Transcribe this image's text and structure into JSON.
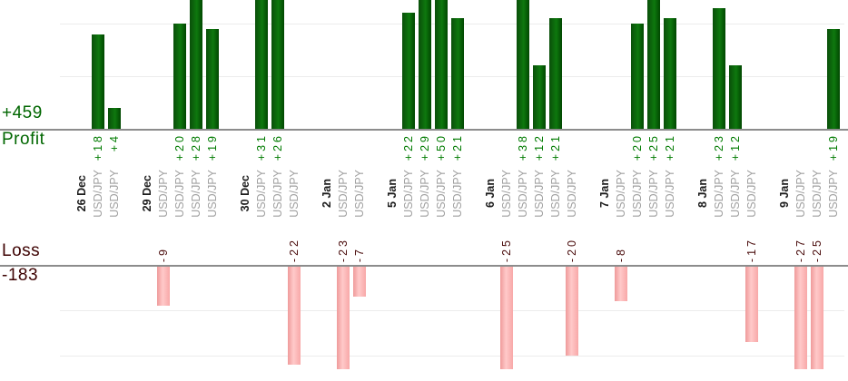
{
  "chart_data": {
    "type": "bar",
    "description": "Trade-by-trade profit and loss bar chart grouped by trading date; profits plotted upward above the upper baseline, losses plotted downward below the lower baseline",
    "instrument": "USD/JPY",
    "profit": {
      "label": "Profit",
      "total": "+459",
      "total_value": 459
    },
    "loss": {
      "label": "Loss",
      "total": "-183",
      "total_value": -183
    },
    "groups": [
      {
        "date": "26 Dec",
        "trades": [
          {
            "pair": "USD/JPY",
            "value": 18
          },
          {
            "pair": "USD/JPY",
            "value": 4
          }
        ]
      },
      {
        "date": "29 Dec",
        "trades": [
          {
            "pair": "USD/JPY",
            "value": -9
          },
          {
            "pair": "USD/JPY",
            "value": 20
          },
          {
            "pair": "USD/JPY",
            "value": 28
          },
          {
            "pair": "USD/JPY",
            "value": 19
          }
        ]
      },
      {
        "date": "30 Dec",
        "trades": [
          {
            "pair": "USD/JPY",
            "value": 31
          },
          {
            "pair": "USD/JPY",
            "value": 26
          },
          {
            "pair": "USD/JPY",
            "value": -22
          }
        ]
      },
      {
        "date": "2 Jan",
        "trades": [
          {
            "pair": "USD/JPY",
            "value": -23
          },
          {
            "pair": "USD/JPY",
            "value": -7
          }
        ]
      },
      {
        "date": "5 Jan",
        "trades": [
          {
            "pair": "USD/JPY",
            "value": 22
          },
          {
            "pair": "USD/JPY",
            "value": 29
          },
          {
            "pair": "USD/JPY",
            "value": 50
          },
          {
            "pair": "USD/JPY",
            "value": 21
          }
        ]
      },
      {
        "date": "6 Jan",
        "trades": [
          {
            "pair": "USD/JPY",
            "value": -25
          },
          {
            "pair": "USD/JPY",
            "value": 38
          },
          {
            "pair": "USD/JPY",
            "value": 12
          },
          {
            "pair": "USD/JPY",
            "value": 21
          },
          {
            "pair": "USD/JPY",
            "value": -20
          }
        ]
      },
      {
        "date": "7 Jan",
        "trades": [
          {
            "pair": "USD/JPY",
            "value": -8
          },
          {
            "pair": "USD/JPY",
            "value": 20
          },
          {
            "pair": "USD/JPY",
            "value": 25
          },
          {
            "pair": "USD/JPY",
            "value": 21
          }
        ]
      },
      {
        "date": "8 Jan",
        "trades": [
          {
            "pair": "USD/JPY",
            "value": 23
          },
          {
            "pair": "USD/JPY",
            "value": 12
          },
          {
            "pair": "USD/JPY",
            "value": -17
          }
        ]
      },
      {
        "date": "9 Jan",
        "trades": [
          {
            "pair": "USD/JPY",
            "value": -27
          },
          {
            "pair": "USD/JPY",
            "value": -25
          },
          {
            "pair": "USD/JPY",
            "value": 19
          }
        ]
      }
    ],
    "profit_axis": {
      "ylim": [
        0,
        24.5
      ],
      "gridline_step": 10,
      "note": "bars taller than visible range are clipped at top edge"
    },
    "loss_axis": {
      "ylim": [
        0,
        -23
      ],
      "gridline_step": 10,
      "note": "bars deeper than visible range are clipped at bottom edge"
    },
    "legend": "none",
    "grid": "on"
  },
  "colors": {
    "background": "#ffffff",
    "profit_bar_dark": "#0a4f0a",
    "profit_bar_mid": "#0e780e",
    "profit_bar_edge": "#014701",
    "loss_bar_edge": "#ef9a9a",
    "loss_bar_light": "#ffc9c9",
    "loss_bar_mid": "#f8a8a8",
    "profit_text": "#007b00",
    "profit_big_text": "#006600",
    "loss_text": "#4a0c0c",
    "loss_big_text": "#3d0202",
    "date_text": "#1c1c1c",
    "pair_text": "#a0a0a0",
    "axis_line": "#8c8c8c",
    "gridline": "#ececec"
  }
}
